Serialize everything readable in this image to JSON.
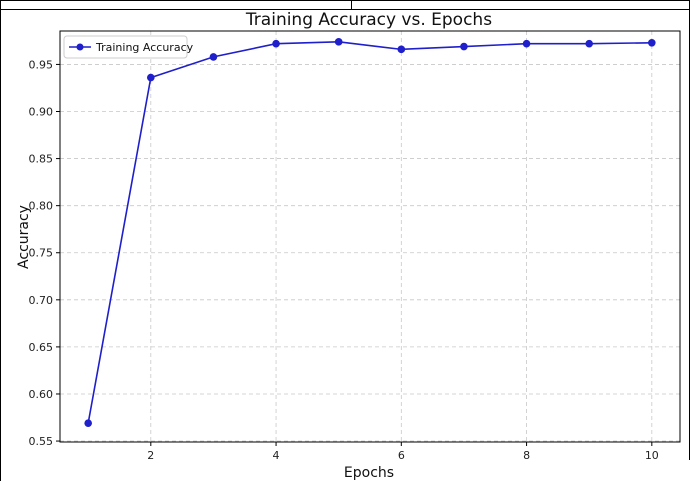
{
  "chart_data": {
    "type": "line",
    "title": "Training Accuracy vs. Epochs",
    "xlabel": "Epochs",
    "ylabel": "Accuracy",
    "x": [
      1,
      2,
      3,
      4,
      5,
      6,
      7,
      8,
      9,
      10
    ],
    "series": [
      {
        "name": "Training Accuracy",
        "values": [
          0.569,
          0.936,
          0.958,
          0.972,
          0.974,
          0.966,
          0.969,
          0.972,
          0.972,
          0.973
        ],
        "color": "#1f1fcc"
      }
    ],
    "xlim": [
      0.55,
      10.45
    ],
    "ylim": [
      0.549,
      0.9855
    ],
    "xticks": [
      2,
      4,
      6,
      8,
      10
    ],
    "xtick_labels": [
      "2",
      "4",
      "6",
      "8",
      "10"
    ],
    "yticks": [
      0.55,
      0.6,
      0.65,
      0.7,
      0.75,
      0.8,
      0.85,
      0.9,
      0.95
    ],
    "ytick_labels": [
      "0.55",
      "0.60",
      "0.65",
      "0.70",
      "0.75",
      "0.80",
      "0.85",
      "0.90",
      "0.95"
    ],
    "grid": true,
    "legend_position": "top-left"
  }
}
